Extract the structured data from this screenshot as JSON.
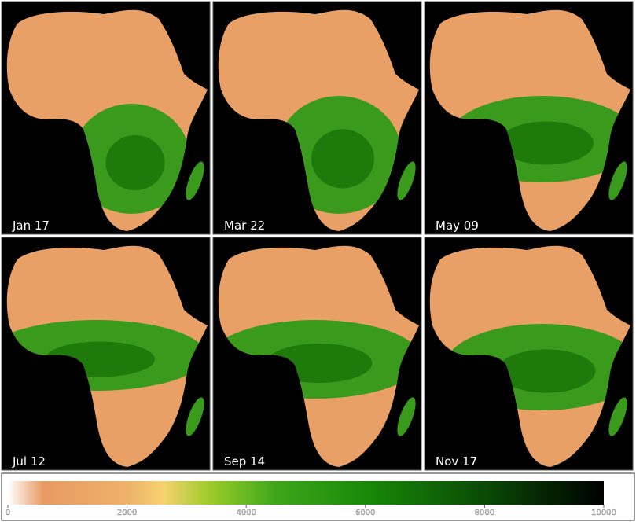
{
  "panels": [
    {
      "label": "Jan 17"
    },
    {
      "label": "Mar 22"
    },
    {
      "label": "May 09"
    },
    {
      "label": "Jul 12"
    },
    {
      "label": "Sep 14"
    },
    {
      "label": "Nov 17"
    }
  ],
  "colorbar": {
    "ticks": [
      0,
      2000,
      4000,
      6000,
      8000,
      10000
    ]
  }
}
